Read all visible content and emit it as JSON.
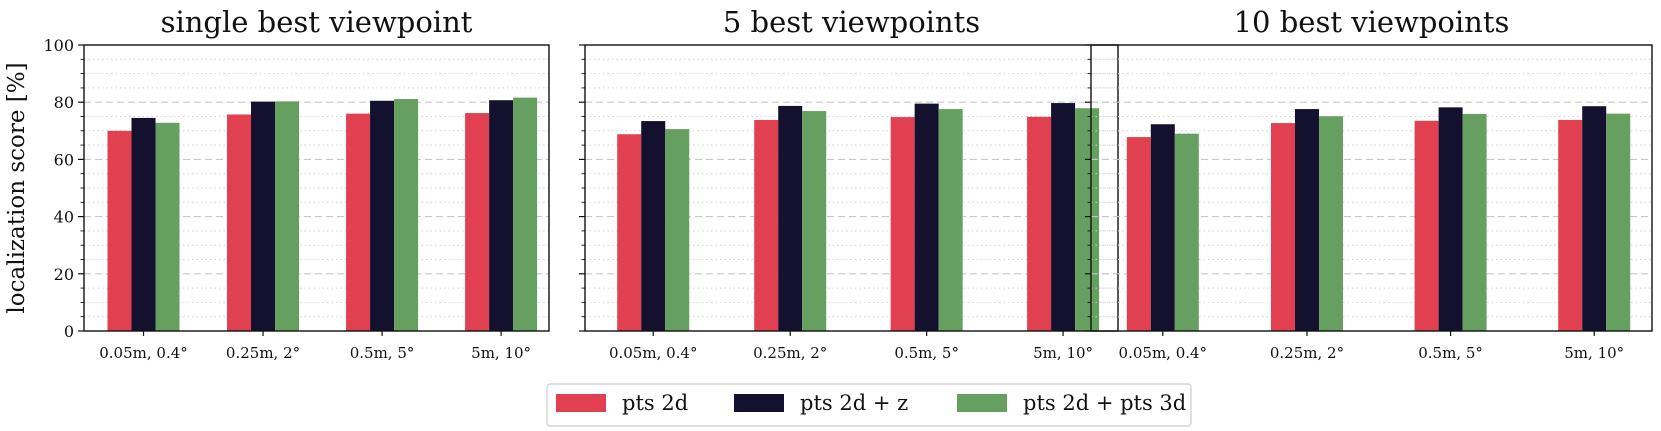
{
  "chart_data": [
    {
      "type": "bar",
      "title": "single best viewpoint",
      "ylabel": "localization score [%]",
      "xlabel": "",
      "ylim": [
        0,
        100
      ],
      "yticks": [
        0,
        20,
        40,
        60,
        80,
        100
      ],
      "categories": [
        "0.05m, 0.4°",
        "0.25m, 2°",
        "0.5m, 5°",
        "5m, 10°"
      ],
      "series": [
        {
          "name": "pts 2d",
          "color": "#e0404f",
          "values": [
            70.0,
            75.7,
            76.0,
            76.2
          ]
        },
        {
          "name": "pts 2d + z",
          "color": "#14112e",
          "values": [
            74.5,
            80.2,
            80.5,
            80.7
          ]
        },
        {
          "name": "pts 2d + pts 3d",
          "color": "#66a061",
          "values": [
            72.8,
            80.3,
            81.1,
            81.6
          ]
        }
      ]
    },
    {
      "type": "bar",
      "title": "5 best viewpoints",
      "ylabel": "",
      "xlabel": "",
      "ylim": [
        0,
        100
      ],
      "yticks": [
        0,
        20,
        40,
        60,
        80,
        100
      ],
      "categories": [
        "0.05m, 0.4°",
        "0.25m, 2°",
        "0.5m, 5°",
        "5m, 10°"
      ],
      "series": [
        {
          "name": "pts 2d",
          "color": "#e0404f",
          "values": [
            68.8,
            73.8,
            74.8,
            74.9
          ]
        },
        {
          "name": "pts 2d + z",
          "color": "#14112e",
          "values": [
            73.4,
            78.7,
            79.5,
            79.7
          ]
        },
        {
          "name": "pts 2d + pts 3d",
          "color": "#66a061",
          "values": [
            70.6,
            76.9,
            77.6,
            77.9
          ]
        }
      ]
    },
    {
      "type": "bar",
      "title": "10 best viewpoints",
      "ylabel": "",
      "xlabel": "",
      "ylim": [
        0,
        100
      ],
      "yticks": [
        0,
        20,
        40,
        60,
        80,
        100
      ],
      "categories": [
        "0.05m, 0.4°",
        "0.25m, 2°",
        "0.5m, 5°",
        "5m, 10°"
      ],
      "series": [
        {
          "name": "pts 2d",
          "color": "#e0404f",
          "values": [
            67.8,
            72.7,
            73.5,
            73.8
          ]
        },
        {
          "name": "pts 2d + z",
          "color": "#14112e",
          "values": [
            72.3,
            77.6,
            78.2,
            78.6
          ]
        },
        {
          "name": "pts 2d + pts 3d",
          "color": "#66a061",
          "values": [
            69.0,
            75.1,
            75.9,
            76.0
          ]
        }
      ]
    }
  ],
  "legend": {
    "placement": "bottom-center",
    "entries": [
      {
        "name": "pts 2d",
        "color": "#e0404f"
      },
      {
        "name": "pts 2d + z",
        "color": "#14112e"
      },
      {
        "name": "pts 2d + pts 3d",
        "color": "#66a061"
      }
    ]
  },
  "grid": {
    "major": "dashed",
    "minor": "dotted",
    "axis": "y"
  }
}
